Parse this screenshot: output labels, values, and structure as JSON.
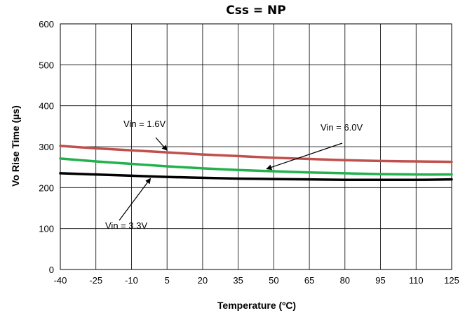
{
  "chart_data": {
    "type": "line",
    "title": "Css = NP",
    "xlabel": "Temperature (ºC)",
    "ylabel": "Vo Rise Time  (µs)",
    "xlim": [
      -40,
      125
    ],
    "ylim": [
      0,
      600
    ],
    "x_ticks": [
      -40,
      -25,
      -10,
      5,
      20,
      35,
      50,
      65,
      80,
      95,
      110,
      125
    ],
    "y_ticks": [
      0,
      100,
      200,
      300,
      400,
      500,
      600
    ],
    "grid": true,
    "series": [
      {
        "name": "Vin = 1.6V",
        "color": "#c0504d",
        "x": [
          -40,
          -25,
          -10,
          5,
          20,
          35,
          50,
          65,
          80,
          95,
          110,
          125
        ],
        "values": [
          302,
          296,
          291,
          286,
          281,
          277,
          273,
          270,
          267,
          265,
          264,
          263
        ]
      },
      {
        "name": "Vin = 6.0V",
        "color": "#22b14c",
        "x": [
          -40,
          -25,
          -10,
          5,
          20,
          35,
          50,
          65,
          80,
          95,
          110,
          125
        ],
        "values": [
          271,
          264,
          258,
          252,
          247,
          243,
          240,
          237,
          235,
          233,
          232,
          232
        ]
      },
      {
        "name": "Vin = 3.3V",
        "color": "#000000",
        "x": [
          -40,
          -25,
          -10,
          5,
          20,
          35,
          50,
          65,
          80,
          95,
          110,
          125
        ],
        "values": [
          235,
          232,
          229,
          226,
          224,
          222,
          221,
          220,
          219,
          219,
          219,
          220
        ]
      }
    ],
    "annotations": [
      {
        "text": "Vin = 1.6V",
        "series": "Vin = 1.6V"
      },
      {
        "text": "Vin = 6.0V",
        "series": "Vin = 6.0V"
      },
      {
        "text": "Vin = 3.3V",
        "series": "Vin = 3.3V"
      }
    ]
  }
}
